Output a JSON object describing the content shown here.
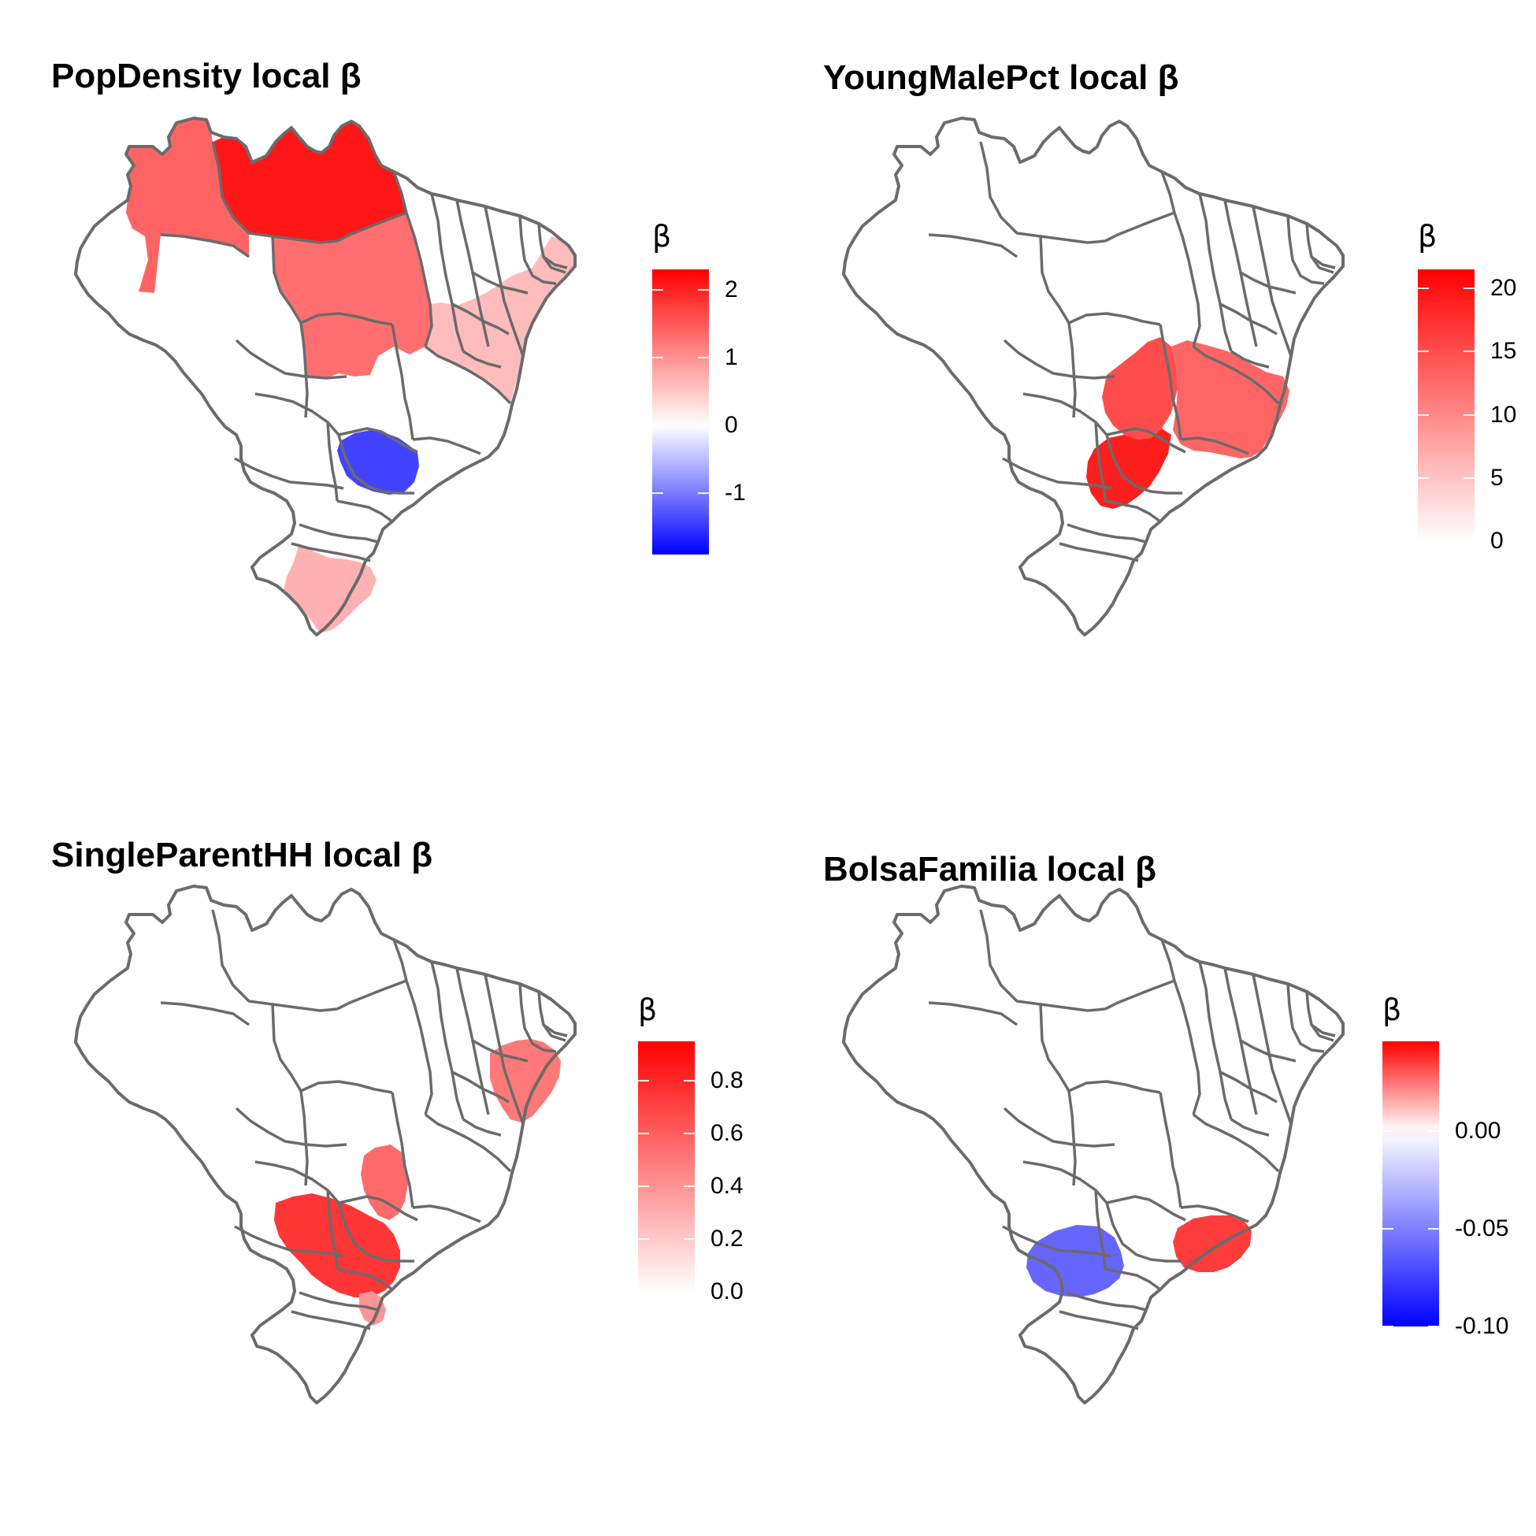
{
  "outline_color": "#6b6b6b",
  "low_color": "#0000ff",
  "mid_color": "#ffffff",
  "high_color": "#ff0000",
  "panels": [
    {
      "title": "PopDensity local β",
      "legend_title": "β",
      "scale": {
        "min": -1.9,
        "max": 2.3,
        "mid": 0
      },
      "ticks": [
        "2",
        "1",
        "0",
        "-1"
      ],
      "tick_values": [
        2,
        1,
        0,
        -1
      ],
      "regions": [
        {
          "name": "north-west",
          "value": 1.4
        },
        {
          "name": "north-center",
          "value": 2.1
        },
        {
          "name": "north-east",
          "value": 1.3
        },
        {
          "name": "northeast-coast",
          "value": 0.6
        },
        {
          "name": "south-center",
          "value": -1.4
        },
        {
          "name": "south",
          "value": 0.7
        }
      ]
    },
    {
      "title": "YoungMalePct local β",
      "legend_title": "β",
      "scale": {
        "min": 0,
        "max": 21.5,
        "mid": 0
      },
      "ticks": [
        "20",
        "15",
        "10",
        "5",
        "0"
      ],
      "tick_values": [
        20,
        15,
        10,
        5,
        0
      ],
      "regions": [
        {
          "name": "center",
          "value": 15
        },
        {
          "name": "center-east",
          "value": 13
        },
        {
          "name": "south-center",
          "value": 19
        }
      ]
    },
    {
      "title": "SingleParentHH local β",
      "legend_title": "β",
      "scale": {
        "min": 0,
        "max": 0.95,
        "mid": 0
      },
      "ticks": [
        "0.8",
        "0.6",
        "0.4",
        "0.2",
        "0.0"
      ],
      "tick_values": [
        0.8,
        0.6,
        0.4,
        0.2,
        0.0
      ],
      "regions": [
        {
          "name": "center-north",
          "value": 0.55
        },
        {
          "name": "northeast-tip",
          "value": 0.5
        },
        {
          "name": "south-center",
          "value": 0.75
        },
        {
          "name": "south-edge",
          "value": 0.4
        }
      ]
    },
    {
      "title": "BolsaFamilia local β",
      "legend_title": "β",
      "scale": {
        "min": -0.1,
        "max": 0.046,
        "mid": 0
      },
      "ticks": [
        "0.00",
        "-0.05",
        "-0.10"
      ],
      "tick_values": [
        0,
        -0.05,
        -0.1
      ],
      "regions": [
        {
          "name": "south-center",
          "value": -0.06
        },
        {
          "name": "southeast",
          "value": 0.035
        }
      ]
    }
  ]
}
